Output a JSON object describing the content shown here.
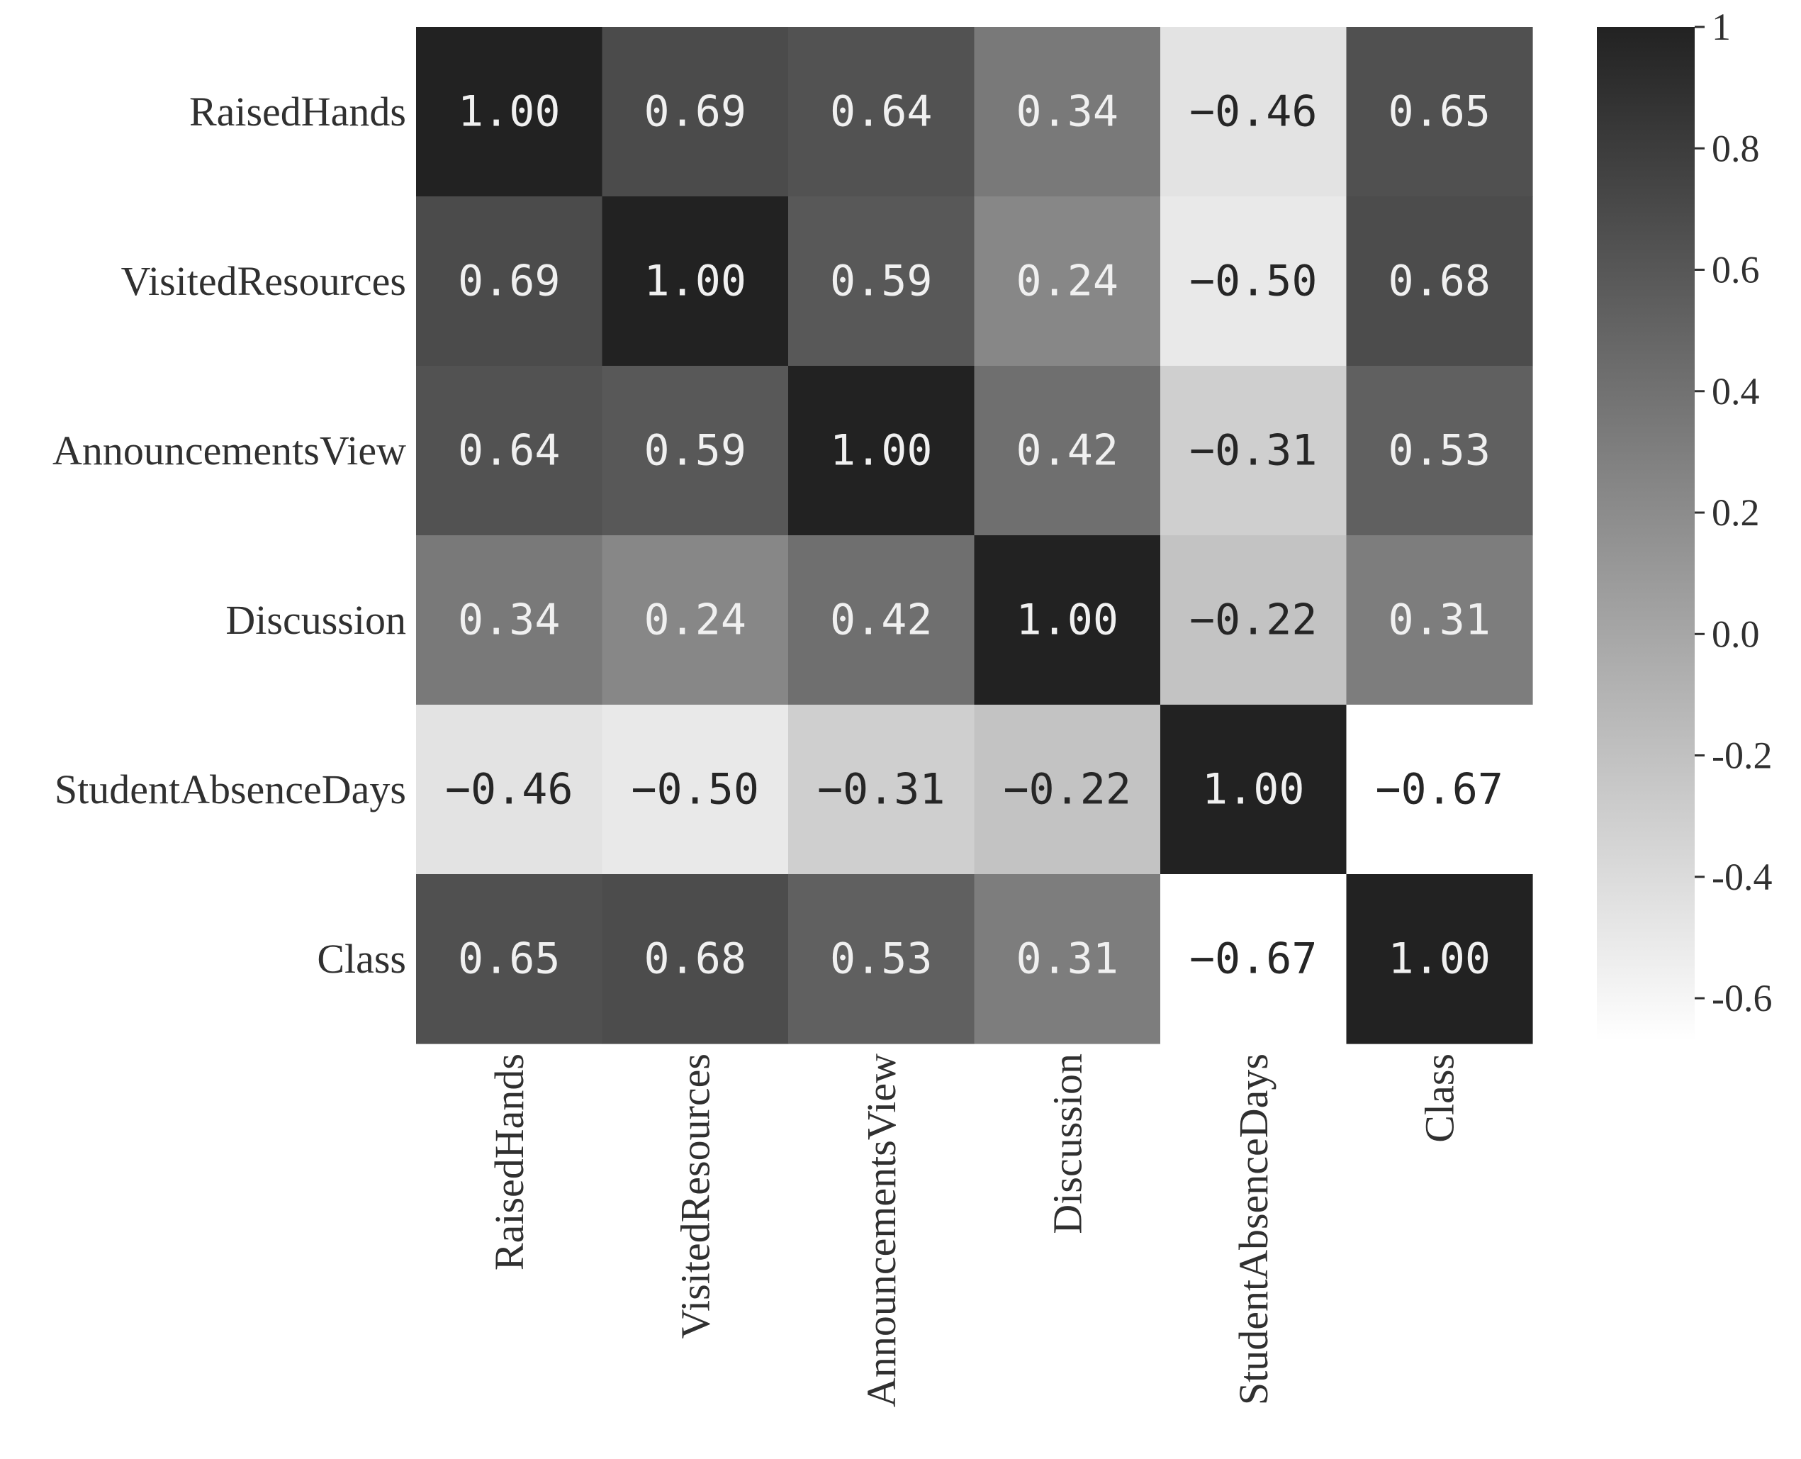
{
  "chart_data": {
    "type": "heatmap",
    "title": "",
    "xlabel": "",
    "ylabel": "",
    "rows": [
      "RaisedHands",
      "VisitedResources",
      "AnnouncementsView",
      "Discussion",
      "StudentAbsenceDays",
      "Class"
    ],
    "columns": [
      "RaisedHands",
      "VisitedResources",
      "AnnouncementsView",
      "Discussion",
      "StudentAbsenceDays",
      "Class"
    ],
    "values": [
      [
        1.0,
        0.69,
        0.64,
        0.34,
        -0.46,
        0.65
      ],
      [
        0.69,
        1.0,
        0.59,
        0.24,
        -0.5,
        0.68
      ],
      [
        0.64,
        0.59,
        1.0,
        0.42,
        -0.31,
        0.53
      ],
      [
        0.34,
        0.24,
        0.42,
        1.0,
        -0.22,
        0.31
      ],
      [
        -0.46,
        -0.5,
        -0.31,
        -0.22,
        1.0,
        -0.67
      ],
      [
        0.65,
        0.68,
        0.53,
        0.31,
        -0.67,
        1.0
      ]
    ],
    "value_labels": [
      [
        "1.00",
        "0.69",
        "0.64",
        "0.34",
        "−0.46",
        "0.65"
      ],
      [
        "0.69",
        "1.00",
        "0.59",
        "0.24",
        "−0.50",
        "0.68"
      ],
      [
        "0.64",
        "0.59",
        "1.00",
        "0.42",
        "−0.31",
        "0.53"
      ],
      [
        "0.34",
        "0.24",
        "0.42",
        "1.00",
        "−0.22",
        "0.31"
      ],
      [
        "−0.46",
        "−0.50",
        "−0.31",
        "−0.22",
        "1.00",
        "−0.67"
      ],
      [
        "0.65",
        "0.68",
        "0.53",
        "0.31",
        "−0.67",
        "1.00"
      ]
    ],
    "colorbar": {
      "range": [
        -0.67,
        1.0
      ],
      "ticks": [
        1,
        0.8,
        0.6,
        0.4,
        0.2,
        0.0,
        -0.2,
        -0.4,
        -0.6
      ],
      "tick_labels": [
        "1",
        "0.8",
        "0.6",
        "0.4",
        "0.2",
        "0.0",
        "-0.2",
        "-0.4",
        "-0.6"
      ],
      "colormap": "greys",
      "high_color": "#222222",
      "low_color": "#ffffff"
    },
    "annotation_light_color": "#f0f0f0",
    "annotation_dark_color": "#262626"
  }
}
